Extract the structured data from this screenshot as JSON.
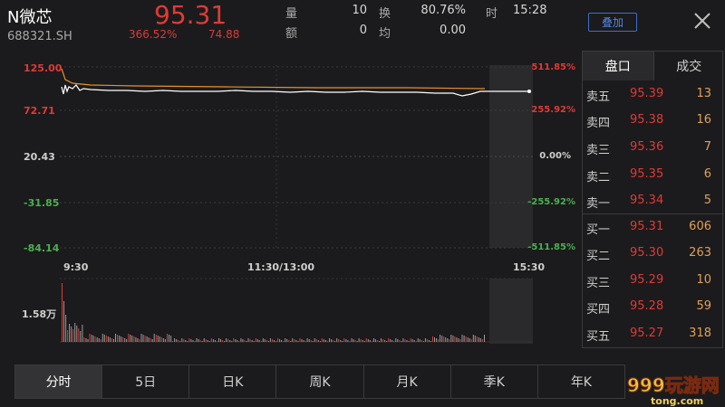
{
  "stock": {
    "name": "N微芯",
    "code": "688321.SH",
    "price": "95.31",
    "change_pct": "366.52%",
    "change": "74.88"
  },
  "stats": {
    "volume_label": "量",
    "volume_value": "10",
    "amount_label": "额",
    "amount_value": "0",
    "turnover_label": "换",
    "turnover_value": "80.76%",
    "avg_label": "均",
    "avg_value": "0.00",
    "time_label": "时",
    "time_value": "15:28"
  },
  "buttons": {
    "overlay": "叠加"
  },
  "chart": {
    "y_left": [
      "125.00",
      "72.71",
      "20.43",
      "-31.85",
      "-84.14"
    ],
    "y_right": [
      "511.85%",
      "255.92%",
      "0.00%",
      "-255.92%",
      "-511.85%"
    ],
    "x_labels": [
      "9:30",
      "11:30/13:00",
      "15:30"
    ],
    "volume_label": "1.58万"
  },
  "chart_data": {
    "type": "line",
    "series": [],
    "x": [
      "9:30",
      "11:30/13:00",
      "15:30"
    ],
    "ylim": [
      -84.14,
      125.0
    ],
    "volume_max_label": "1.58万",
    "colors": {
      "price": "#ffffff",
      "avg": "#e8902a",
      "up": "#e03a35",
      "down": "#4caf50"
    }
  },
  "orderbook": {
    "tabs": [
      "盘口",
      "成交"
    ],
    "asks": [
      {
        "label": "卖五",
        "price": "95.39",
        "vol": "13"
      },
      {
        "label": "卖四",
        "price": "95.38",
        "vol": "16"
      },
      {
        "label": "卖三",
        "price": "95.36",
        "vol": "7"
      },
      {
        "label": "卖二",
        "price": "95.35",
        "vol": "6"
      },
      {
        "label": "卖一",
        "price": "95.34",
        "vol": "5"
      }
    ],
    "bids": [
      {
        "label": "买一",
        "price": "95.31",
        "vol": "606"
      },
      {
        "label": "买二",
        "price": "95.30",
        "vol": "263"
      },
      {
        "label": "买三",
        "price": "95.29",
        "vol": "10"
      },
      {
        "label": "买四",
        "price": "95.28",
        "vol": "59"
      },
      {
        "label": "买五",
        "price": "95.27",
        "vol": "318"
      }
    ]
  },
  "periods": [
    "分时",
    "5日",
    "日K",
    "周K",
    "月K",
    "季K",
    "年K"
  ],
  "watermark": {
    "text": "999玩游网 tong.com"
  }
}
